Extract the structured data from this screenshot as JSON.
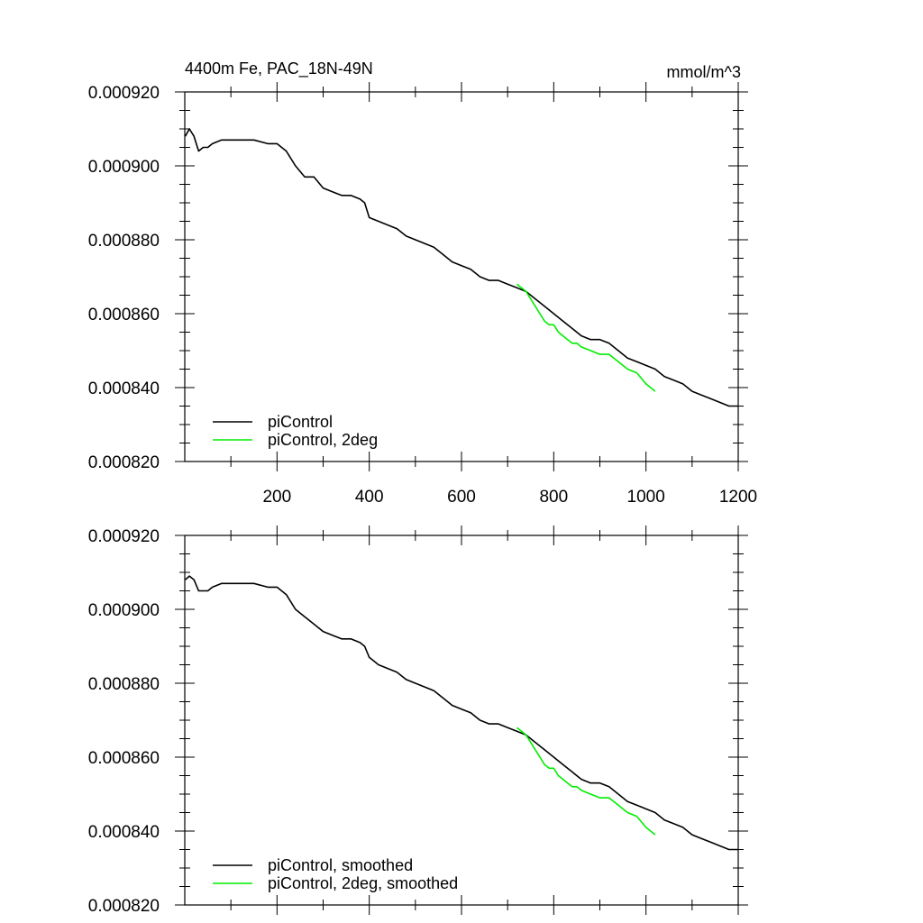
{
  "chart_data": [
    {
      "type": "line",
      "title": "4400m Fe, PAC_18N-49N",
      "units": "mmol/m^3",
      "xlim": [
        0,
        1200
      ],
      "ylim": [
        0.00082,
        0.00092
      ],
      "xticks": [
        200,
        400,
        600,
        800,
        1000,
        1200
      ],
      "xtick_labels": [
        "200",
        "400",
        "600",
        "800",
        "1000",
        "1200"
      ],
      "yticks": [
        0.00082,
        0.00084,
        0.00086,
        0.00088,
        0.0009,
        0.00092
      ],
      "ytick_labels": [
        "0.000820",
        "0.000840",
        "0.000860",
        "0.000880",
        "0.000900",
        "0.000920"
      ],
      "grid": false,
      "legend_position": "bottom-left",
      "series": [
        {
          "name": "piControl",
          "color": "#000000",
          "x": [
            1,
            10,
            20,
            30,
            40,
            50,
            60,
            80,
            100,
            120,
            150,
            180,
            200,
            220,
            240,
            260,
            280,
            300,
            320,
            340,
            360,
            380,
            390,
            400,
            420,
            440,
            460,
            480,
            500,
            520,
            540,
            560,
            580,
            600,
            620,
            640,
            660,
            680,
            700,
            720,
            740,
            760,
            780,
            800,
            820,
            840,
            860,
            880,
            900,
            920,
            940,
            960,
            980,
            1000,
            1020,
            1040,
            1060,
            1080,
            1100,
            1120,
            1140,
            1160,
            1180,
            1200
          ],
          "y": [
            0.000908,
            0.00091,
            0.000908,
            0.000904,
            0.000905,
            0.000905,
            0.000906,
            0.000907,
            0.000907,
            0.000907,
            0.000907,
            0.000906,
            0.000906,
            0.000904,
            0.0009,
            0.000897,
            0.000897,
            0.000894,
            0.000893,
            0.000892,
            0.000892,
            0.000891,
            0.00089,
            0.000886,
            0.000885,
            0.000884,
            0.000883,
            0.000881,
            0.00088,
            0.000879,
            0.000878,
            0.000876,
            0.000874,
            0.000873,
            0.000872,
            0.00087,
            0.000869,
            0.000869,
            0.000868,
            0.000867,
            0.000866,
            0.000864,
            0.000862,
            0.00086,
            0.000858,
            0.000856,
            0.000854,
            0.000853,
            0.000853,
            0.000852,
            0.00085,
            0.000848,
            0.000847,
            0.000846,
            0.000845,
            0.000843,
            0.000842,
            0.000841,
            0.000839,
            0.000838,
            0.000837,
            0.000836,
            0.000835,
            0.000835
          ]
        },
        {
          "name": "piControl, 2deg",
          "color": "#00ee00",
          "x": [
            720,
            730,
            740,
            750,
            760,
            770,
            780,
            790,
            800,
            810,
            820,
            830,
            840,
            850,
            860,
            880,
            900,
            920,
            930,
            940,
            950,
            960,
            980,
            1000,
            1020
          ],
          "y": [
            0.000868,
            0.000867,
            0.000866,
            0.000864,
            0.000862,
            0.00086,
            0.000858,
            0.000857,
            0.000857,
            0.000855,
            0.000854,
            0.000853,
            0.000852,
            0.000852,
            0.000851,
            0.00085,
            0.000849,
            0.000849,
            0.000848,
            0.000847,
            0.000846,
            0.000845,
            0.000844,
            0.000841,
            0.000839
          ]
        }
      ]
    },
    {
      "type": "line",
      "title": "",
      "units": "",
      "xlim": [
        0,
        1200
      ],
      "ylim": [
        0.00082,
        0.00092
      ],
      "xticks": [
        200,
        400,
        600,
        800,
        1000,
        1200
      ],
      "xtick_labels": [],
      "yticks": [
        0.00082,
        0.00084,
        0.00086,
        0.00088,
        0.0009,
        0.00092
      ],
      "ytick_labels": [
        "0.000820",
        "0.000840",
        "0.000860",
        "0.000880",
        "0.000900",
        "0.000920"
      ],
      "grid": false,
      "legend_position": "bottom-left",
      "series": [
        {
          "name": "piControl, smoothed",
          "color": "#000000",
          "x": [
            1,
            10,
            20,
            30,
            40,
            50,
            60,
            80,
            100,
            120,
            150,
            180,
            200,
            220,
            240,
            260,
            280,
            300,
            320,
            340,
            360,
            380,
            390,
            400,
            420,
            440,
            460,
            480,
            500,
            520,
            540,
            560,
            580,
            600,
            620,
            640,
            660,
            680,
            700,
            720,
            740,
            760,
            780,
            800,
            820,
            840,
            860,
            880,
            900,
            920,
            940,
            960,
            980,
            1000,
            1020,
            1040,
            1060,
            1080,
            1100,
            1120,
            1140,
            1160,
            1180,
            1200
          ],
          "y": [
            0.000908,
            0.000909,
            0.000908,
            0.000905,
            0.000905,
            0.000905,
            0.000906,
            0.000907,
            0.000907,
            0.000907,
            0.000907,
            0.000906,
            0.000906,
            0.000904,
            0.0009,
            0.000898,
            0.000896,
            0.000894,
            0.000893,
            0.000892,
            0.000892,
            0.000891,
            0.00089,
            0.000887,
            0.000885,
            0.000884,
            0.000883,
            0.000881,
            0.00088,
            0.000879,
            0.000878,
            0.000876,
            0.000874,
            0.000873,
            0.000872,
            0.00087,
            0.000869,
            0.000869,
            0.000868,
            0.000867,
            0.000866,
            0.000864,
            0.000862,
            0.00086,
            0.000858,
            0.000856,
            0.000854,
            0.000853,
            0.000853,
            0.000852,
            0.00085,
            0.000848,
            0.000847,
            0.000846,
            0.000845,
            0.000843,
            0.000842,
            0.000841,
            0.000839,
            0.000838,
            0.000837,
            0.000836,
            0.000835,
            0.000835
          ]
        },
        {
          "name": "piControl, 2deg, smoothed",
          "color": "#00ee00",
          "x": [
            720,
            730,
            740,
            750,
            760,
            770,
            780,
            790,
            800,
            810,
            820,
            830,
            840,
            850,
            860,
            880,
            900,
            920,
            930,
            940,
            950,
            960,
            980,
            1000,
            1020
          ],
          "y": [
            0.000868,
            0.000867,
            0.000866,
            0.000864,
            0.000862,
            0.00086,
            0.000858,
            0.000857,
            0.000857,
            0.000855,
            0.000854,
            0.000853,
            0.000852,
            0.000852,
            0.000851,
            0.00085,
            0.000849,
            0.000849,
            0.000848,
            0.000847,
            0.000846,
            0.000845,
            0.000844,
            0.000841,
            0.000839
          ]
        }
      ]
    }
  ]
}
